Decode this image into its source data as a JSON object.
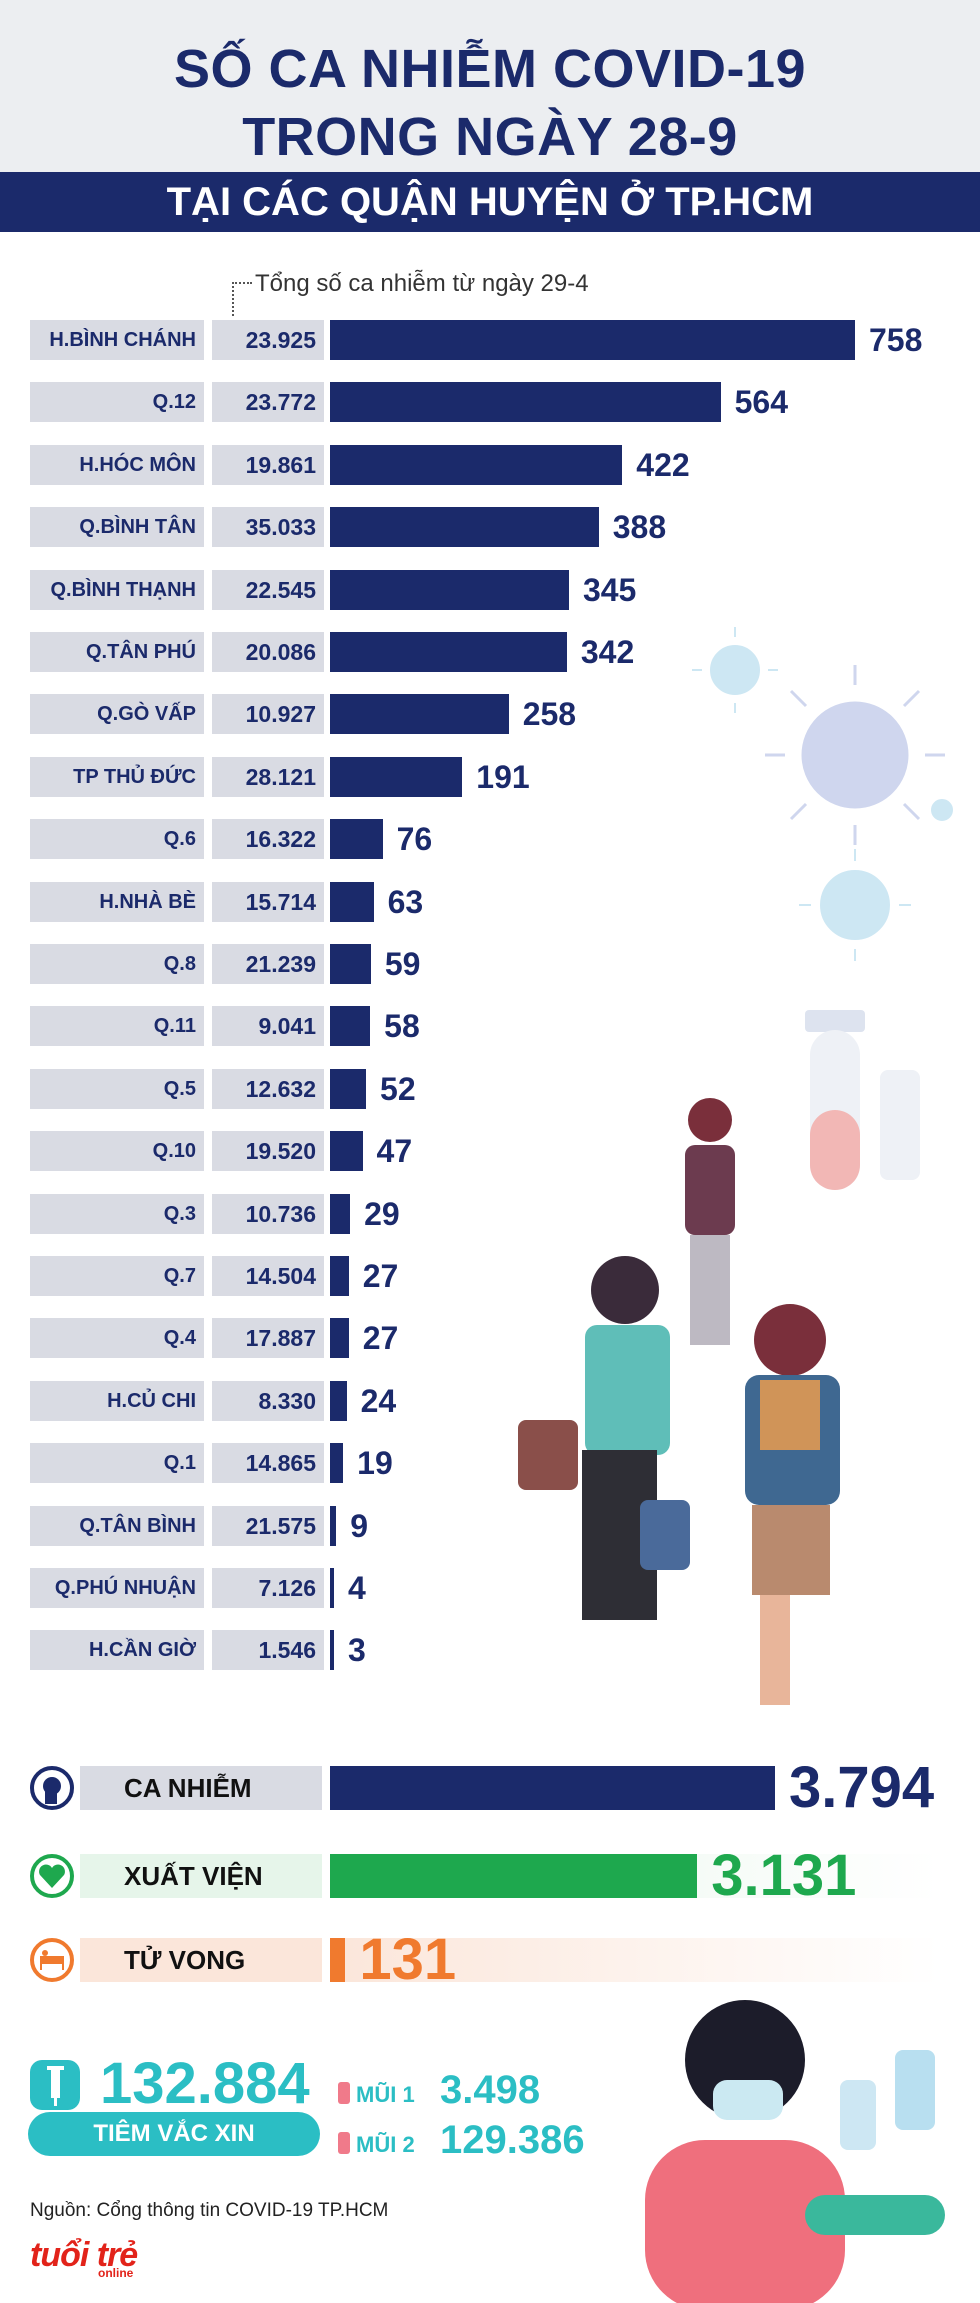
{
  "header": {
    "title_line1": "SỐ CA NHIỄM COVID-19",
    "title_line2": "TRONG NGÀY 28-9",
    "subtitle": "TẠI CÁC QUẬN HUYỆN Ở TP.HCM"
  },
  "total_note": "Tổng số ca nhiễm từ ngày 29-4",
  "colors": {
    "navy": "#1b2a6b",
    "green": "#1ea84e",
    "orange": "#f07a2e",
    "teal": "#2bbec4",
    "label_bg": "#d9dbe3"
  },
  "chart_data": {
    "type": "bar",
    "orientation": "horizontal",
    "categories": [
      "H.BÌNH CHÁNH",
      "Q.12",
      "H.HÓC MÔN",
      "Q.BÌNH TÂN",
      "Q.BÌNH THẠNH",
      "Q.TÂN PHÚ",
      "Q.GÒ VẤP",
      "TP THỦ ĐỨC",
      "Q.6",
      "H.NHÀ BÈ",
      "Q.8",
      "Q.11",
      "Q.5",
      "Q.10",
      "Q.3",
      "Q.7",
      "Q.4",
      "H.CỦ CHI",
      "Q.1",
      "Q.TÂN BÌNH",
      "Q.PHÚ NHUẬN",
      "H.CẦN GIỜ"
    ],
    "totals": [
      "23.925",
      "23.772",
      "19.861",
      "35.033",
      "22.545",
      "20.086",
      "10.927",
      "28.121",
      "16.322",
      "15.714",
      "21.239",
      "9.041",
      "12.632",
      "19.520",
      "10.736",
      "14.504",
      "17.887",
      "8.330",
      "14.865",
      "21.575",
      "7.126",
      "1.546"
    ],
    "values": [
      758,
      564,
      422,
      388,
      345,
      342,
      258,
      191,
      76,
      63,
      59,
      58,
      52,
      47,
      29,
      27,
      27,
      24,
      19,
      9,
      4,
      3
    ],
    "title": "SỐ CA NHIỄM COVID-19 TRONG NGÀY 28-9",
    "xlim": [
      0,
      758
    ]
  },
  "summary": {
    "infected": {
      "label": "CA NHIỄM",
      "value": 3794,
      "value_text": "3.794",
      "icon": "head-icon"
    },
    "discharged": {
      "label": "XUẤT VIỆN",
      "value": 3131,
      "value_text": "3.131",
      "icon": "heart-icon"
    },
    "deaths": {
      "label": "TỬ VONG",
      "value": 131,
      "value_text": "131",
      "icon": "bed-icon"
    }
  },
  "vaccine": {
    "total": "132.884",
    "label": "TIÊM VẮC XIN",
    "dose1_label": "MŨI 1",
    "dose1_value": "3.498",
    "dose2_label": "MŨI 2",
    "dose2_value": "129.386"
  },
  "source": "Nguồn: Cổng thông tin COVID-19 TP.HCM",
  "logo": {
    "main": "tuổi trẻ",
    "sub": "online"
  }
}
